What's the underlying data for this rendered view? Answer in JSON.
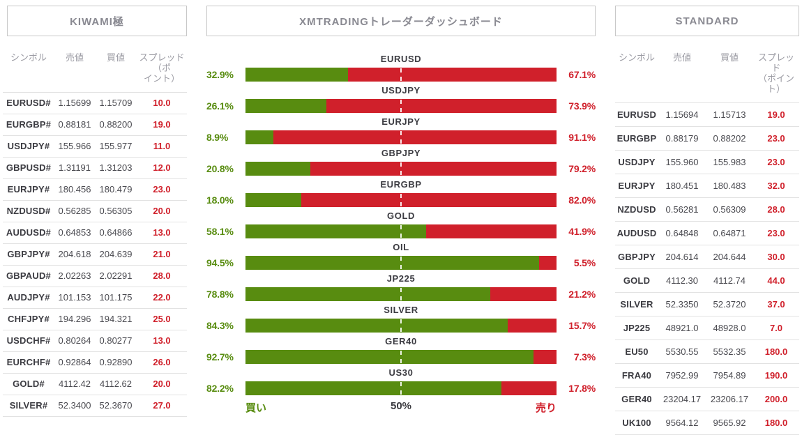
{
  "colors": {
    "buy_green": "#588C10",
    "sell_red": "#D0202B",
    "title_gray": "#8A8A92",
    "header_gray": "#9B9BA3",
    "text_dark": "#3B3B41",
    "box_border": "#C8C8C8",
    "row_line": "#E2E2E2"
  },
  "table_headers": {
    "kiwami": {
      "symbol": "シンボル",
      "bid": "売値",
      "ask": "買値",
      "spread": "スプレッド（ポ\nイント）"
    },
    "standard": {
      "symbol": "シンボル",
      "bid": "売値",
      "ask": "買値",
      "spread": "スプレッド\n（ポイント）"
    }
  },
  "chart_data": [
    {
      "type": "table",
      "title": "KIWAMI極",
      "columns": [
        "シンボル",
        "売値",
        "買値",
        "スプレッド（ポイント）"
      ],
      "rows": [
        [
          "EURUSD#",
          "1.15699",
          "1.15709",
          "10.0"
        ],
        [
          "EURGBP#",
          "0.88181",
          "0.88200",
          "19.0"
        ],
        [
          "USDJPY#",
          "155.966",
          "155.977",
          "11.0"
        ],
        [
          "GBPUSD#",
          "1.31191",
          "1.31203",
          "12.0"
        ],
        [
          "EURJPY#",
          "180.456",
          "180.479",
          "23.0"
        ],
        [
          "NZDUSD#",
          "0.56285",
          "0.56305",
          "20.0"
        ],
        [
          "AUDUSD#",
          "0.64853",
          "0.64866",
          "13.0"
        ],
        [
          "GBPJPY#",
          "204.618",
          "204.639",
          "21.0"
        ],
        [
          "GBPAUD#",
          "2.02263",
          "2.02291",
          "28.0"
        ],
        [
          "AUDJPY#",
          "101.153",
          "101.175",
          "22.0"
        ],
        [
          "CHFJPY#",
          "194.296",
          "194.321",
          "25.0"
        ],
        [
          "USDCHF#",
          "0.80264",
          "0.80277",
          "13.0"
        ],
        [
          "EURCHF#",
          "0.92864",
          "0.92890",
          "26.0"
        ],
        [
          "GOLD#",
          "4112.42",
          "4112.62",
          "20.0"
        ],
        [
          "SILVER#",
          "52.3400",
          "52.3670",
          "27.0"
        ]
      ]
    },
    {
      "type": "bar",
      "orientation": "horizontal-stacked",
      "title": "XMTRADINGトレーダーダッシュボード",
      "categories": [
        "EURUSD",
        "USDJPY",
        "EURJPY",
        "GBPJPY",
        "EURGBP",
        "GOLD",
        "OIL",
        "JP225",
        "SILVER",
        "GER40",
        "US30"
      ],
      "series": [
        {
          "name": "買い",
          "color": "#588C10",
          "values": [
            32.9,
            26.1,
            8.9,
            20.8,
            18.0,
            58.1,
            94.5,
            78.8,
            84.3,
            92.7,
            82.2
          ],
          "labels": [
            "32.9%",
            "26.1%",
            "8.9%",
            "20.8%",
            "18.0%",
            "58.1%",
            "94.5%",
            "78.8%",
            "84.3%",
            "92.7%",
            "82.2%"
          ]
        },
        {
          "name": "売り",
          "color": "#D0202B",
          "values": [
            67.1,
            73.9,
            91.1,
            79.2,
            82.0,
            41.9,
            5.5,
            21.2,
            15.7,
            7.3,
            17.8
          ],
          "labels": [
            "67.1%",
            "73.9%",
            "91.1%",
            "79.2%",
            "82.0%",
            "41.9%",
            "5.5%",
            "21.2%",
            "15.7%",
            "7.3%",
            "17.8%"
          ]
        }
      ],
      "xlim": [
        0,
        100
      ],
      "midline": 50,
      "axis_labels": [
        "買い",
        "50%",
        "売り"
      ],
      "legend_position": "bottom"
    },
    {
      "type": "table",
      "title": "STANDARD",
      "columns": [
        "シンボル",
        "売値",
        "買値",
        "スプレッド（ポイント）"
      ],
      "rows": [
        [
          "EURUSD",
          "1.15694",
          "1.15713",
          "19.0"
        ],
        [
          "EURGBP",
          "0.88179",
          "0.88202",
          "23.0"
        ],
        [
          "USDJPY",
          "155.960",
          "155.983",
          "23.0"
        ],
        [
          "EURJPY",
          "180.451",
          "180.483",
          "32.0"
        ],
        [
          "NZDUSD",
          "0.56281",
          "0.56309",
          "28.0"
        ],
        [
          "AUDUSD",
          "0.64848",
          "0.64871",
          "23.0"
        ],
        [
          "GBPJPY",
          "204.614",
          "204.644",
          "30.0"
        ],
        [
          "GOLD",
          "4112.30",
          "4112.74",
          "44.0"
        ],
        [
          "SILVER",
          "52.3350",
          "52.3720",
          "37.0"
        ],
        [
          "JP225",
          "48921.0",
          "48928.0",
          "7.0"
        ],
        [
          "EU50",
          "5530.55",
          "5532.35",
          "180.0"
        ],
        [
          "FRA40",
          "7952.99",
          "7954.89",
          "190.0"
        ],
        [
          "GER40",
          "23204.17",
          "23206.17",
          "200.0"
        ],
        [
          "UK100",
          "9564.12",
          "9565.92",
          "180.0"
        ]
      ]
    }
  ]
}
